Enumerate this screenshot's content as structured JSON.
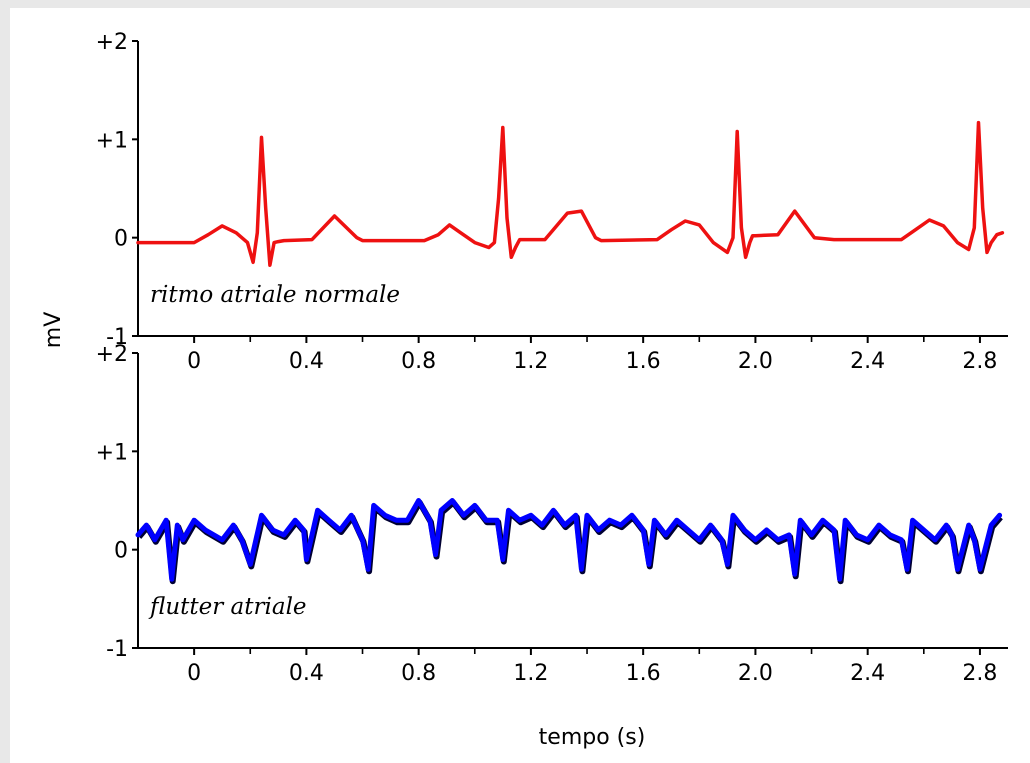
{
  "chart_data": {
    "type": "line",
    "xlabel": "tempo (s)",
    "ylabel": "mV",
    "grid": false,
    "legend": "none",
    "panels": [
      {
        "annotation": "ritmo atriale normale",
        "xlim": [
          -0.2,
          2.9
        ],
        "ylim": [
          -1,
          2
        ],
        "xticks": [
          0,
          0.4,
          0.8,
          1.2,
          1.6,
          2.0,
          2.4,
          2.8
        ],
        "xtick_labels": [
          "0",
          "0.4",
          "0.8",
          "1.2",
          "1.6",
          "2.0",
          "2.4",
          "2.8"
        ],
        "yticks": [
          -1,
          0,
          1,
          2
        ],
        "ytick_labels": [
          "-1",
          "0",
          "+1",
          "+2"
        ],
        "series": [
          {
            "color": "#ee1111",
            "x": [
              -0.2,
              0.0,
              0.05,
              0.1,
              0.15,
              0.19,
              0.21,
              0.225,
              0.24,
              0.255,
              0.27,
              0.285,
              0.3,
              0.32,
              0.42,
              0.5,
              0.58,
              0.6,
              0.82,
              0.87,
              0.91,
              0.95,
              1.0,
              1.05,
              1.07,
              1.085,
              1.1,
              1.115,
              1.13,
              1.145,
              1.16,
              1.2,
              1.25,
              1.33,
              1.38,
              1.43,
              1.45,
              1.65,
              1.7,
              1.75,
              1.8,
              1.85,
              1.9,
              1.92,
              1.935,
              1.95,
              1.965,
              1.98,
              1.99,
              2.0,
              2.08,
              2.14,
              2.21,
              2.28,
              2.3,
              2.52,
              2.57,
              2.62,
              2.67,
              2.72,
              2.76,
              2.78,
              2.795,
              2.81,
              2.825,
              2.84,
              2.86,
              2.88
            ],
            "y": [
              -0.05,
              -0.05,
              0.03,
              0.12,
              0.05,
              -0.05,
              -0.25,
              0.05,
              1.02,
              0.3,
              -0.28,
              -0.05,
              -0.04,
              -0.03,
              -0.02,
              0.22,
              0.0,
              -0.03,
              -0.03,
              0.03,
              0.13,
              0.05,
              -0.05,
              -0.1,
              -0.05,
              0.4,
              1.12,
              0.2,
              -0.2,
              -0.1,
              -0.02,
              -0.02,
              -0.02,
              0.25,
              0.27,
              0.0,
              -0.03,
              -0.02,
              0.08,
              0.17,
              0.13,
              -0.05,
              -0.15,
              0.0,
              1.08,
              0.1,
              -0.2,
              -0.05,
              0.02,
              0.02,
              0.03,
              0.27,
              0.0,
              -0.02,
              -0.02,
              -0.02,
              0.08,
              0.18,
              0.12,
              -0.05,
              -0.12,
              0.1,
              1.17,
              0.3,
              -0.15,
              -0.05,
              0.03,
              0.05
            ]
          }
        ]
      },
      {
        "annotation": "flutter atriale",
        "xlim": [
          -0.2,
          2.9
        ],
        "ylim": [
          -1,
          2
        ],
        "xticks": [
          0,
          0.4,
          0.8,
          1.2,
          1.6,
          2.0,
          2.4,
          2.8
        ],
        "xtick_labels": [
          "0",
          "0.4",
          "0.8",
          "1.2",
          "1.6",
          "2.0",
          "2.4",
          "2.8"
        ],
        "yticks": [
          -1,
          0,
          1,
          2
        ],
        "ytick_labels": [
          "-1",
          "0",
          "+1",
          "+2"
        ],
        "series": [
          {
            "color": "#0000ff",
            "x": [
              -0.2,
              -0.17,
              -0.14,
              -0.1,
              -0.08,
              -0.06,
              -0.04,
              0.0,
              0.04,
              0.1,
              0.14,
              0.17,
              0.2,
              0.24,
              0.28,
              0.32,
              0.36,
              0.39,
              0.4,
              0.44,
              0.48,
              0.52,
              0.56,
              0.6,
              0.62,
              0.64,
              0.68,
              0.72,
              0.76,
              0.8,
              0.84,
              0.86,
              0.88,
              0.92,
              0.96,
              1.0,
              1.04,
              1.08,
              1.1,
              1.12,
              1.16,
              1.2,
              1.24,
              1.28,
              1.32,
              1.36,
              1.38,
              1.4,
              1.44,
              1.48,
              1.52,
              1.56,
              1.6,
              1.62,
              1.64,
              1.68,
              1.72,
              1.76,
              1.8,
              1.84,
              1.88,
              1.9,
              1.92,
              1.96,
              2.0,
              2.04,
              2.08,
              2.12,
              2.14,
              2.16,
              2.2,
              2.24,
              2.28,
              2.3,
              2.32,
              2.36,
              2.4,
              2.44,
              2.48,
              2.52,
              2.54,
              2.56,
              2.6,
              2.64,
              2.68,
              2.7,
              2.72,
              2.76,
              2.78,
              2.8,
              2.84,
              2.87
            ],
            "y": [
              0.15,
              0.25,
              0.1,
              0.3,
              -0.3,
              0.25,
              0.1,
              0.3,
              0.2,
              0.1,
              0.25,
              0.1,
              -0.15,
              0.35,
              0.2,
              0.15,
              0.3,
              0.2,
              -0.1,
              0.4,
              0.3,
              0.2,
              0.35,
              0.1,
              -0.2,
              0.45,
              0.35,
              0.3,
              0.3,
              0.5,
              0.3,
              -0.05,
              0.4,
              0.5,
              0.35,
              0.45,
              0.3,
              0.3,
              -0.1,
              0.4,
              0.3,
              0.35,
              0.25,
              0.4,
              0.25,
              0.35,
              -0.2,
              0.35,
              0.2,
              0.3,
              0.25,
              0.35,
              0.2,
              -0.15,
              0.3,
              0.15,
              0.3,
              0.2,
              0.1,
              0.25,
              0.1,
              -0.15,
              0.35,
              0.2,
              0.1,
              0.2,
              0.1,
              0.15,
              -0.25,
              0.3,
              0.15,
              0.3,
              0.2,
              -0.3,
              0.3,
              0.15,
              0.1,
              0.25,
              0.15,
              0.1,
              -0.2,
              0.3,
              0.2,
              0.1,
              0.25,
              0.15,
              -0.2,
              0.25,
              0.1,
              -0.2,
              0.25,
              0.35
            ]
          }
        ]
      }
    ]
  }
}
